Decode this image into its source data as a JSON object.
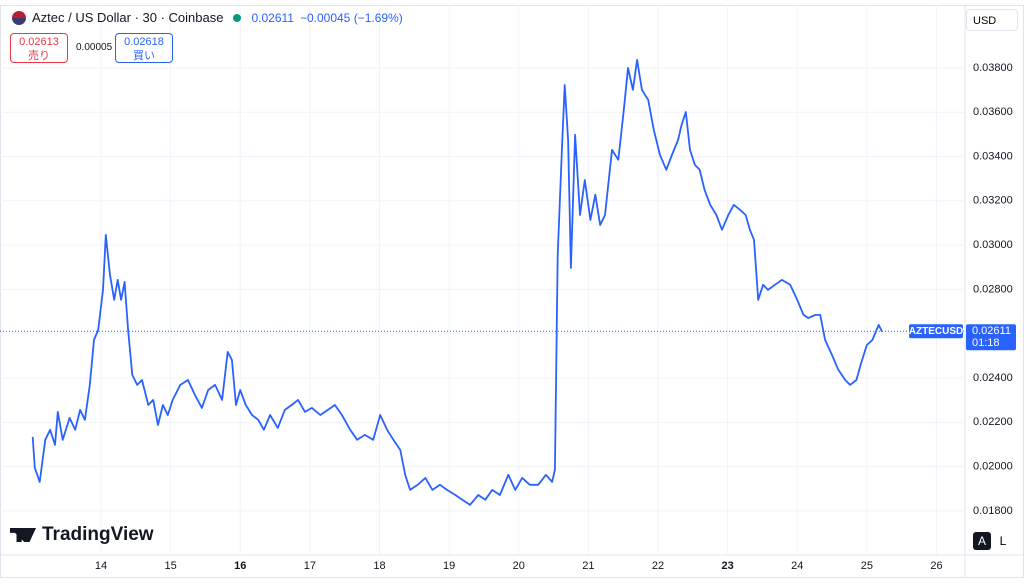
{
  "chart_data": {
    "type": "line",
    "title": "Aztec / US Dollar · 30 · Coinbase",
    "symbol": "AZTECUSD",
    "last_price": 0.02611,
    "change": "−0.00045 (−1.69%)",
    "countdown": "01:18",
    "currency": "USD",
    "sell_price": "0.02613",
    "sell_label": "売り",
    "spread": "0.00005",
    "buy_price": "0.02618",
    "buy_label": "買い",
    "brand": "TradingView",
    "scale_auto": "A",
    "scale_log": "L",
    "color": "#2962ff",
    "xlim": [
      12.55,
      26.41
    ],
    "xticks": [
      14,
      15,
      16,
      17,
      18,
      19,
      20,
      21,
      22,
      23,
      24,
      25,
      26
    ],
    "bold_xticks": [
      16,
      23
    ],
    "ylim": [
      0.01601,
      0.04084
    ],
    "yticks": [
      {
        "value": 0.018,
        "label": "0.01800"
      },
      {
        "value": 0.02,
        "label": "0.02000"
      },
      {
        "value": 0.022,
        "label": "0.02200"
      },
      {
        "value": 0.024,
        "label": "0.02400"
      },
      {
        "value": 0.026,
        "label": "0.02600"
      },
      {
        "value": 0.028,
        "label": "0.02800"
      },
      {
        "value": 0.03,
        "label": "0.03000"
      },
      {
        "value": 0.032,
        "label": "0.03200"
      },
      {
        "value": 0.034,
        "label": "0.03400"
      },
      {
        "value": 0.036,
        "label": "0.03600"
      },
      {
        "value": 0.038,
        "label": "0.03800"
      }
    ],
    "grid": true,
    "x": [
      13.02,
      13.05,
      13.12,
      13.2,
      13.27,
      13.34,
      13.38,
      13.45,
      13.55,
      13.63,
      13.7,
      13.77,
      13.84,
      13.9,
      13.96,
      14.03,
      14.07,
      14.13,
      14.19,
      14.24,
      14.29,
      14.34,
      14.39,
      14.45,
      14.52,
      14.59,
      14.68,
      14.75,
      14.82,
      14.89,
      14.96,
      15.03,
      15.14,
      15.25,
      15.35,
      15.45,
      15.54,
      15.64,
      15.74,
      15.82,
      15.88,
      15.94,
      16.0,
      16.08,
      16.17,
      16.26,
      16.34,
      16.43,
      16.54,
      16.64,
      16.74,
      16.83,
      16.93,
      17.03,
      17.15,
      17.26,
      17.36,
      17.46,
      17.58,
      17.68,
      17.79,
      17.91,
      18.01,
      18.11,
      18.2,
      18.3,
      18.37,
      18.44,
      18.55,
      18.66,
      18.76,
      18.87,
      18.97,
      19.09,
      19.19,
      19.3,
      19.42,
      19.52,
      19.62,
      19.73,
      19.85,
      19.95,
      20.05,
      20.16,
      20.28,
      20.39,
      20.48,
      20.52,
      20.56,
      20.62,
      20.66,
      20.71,
      20.75,
      20.81,
      20.88,
      20.95,
      21.03,
      21.1,
      21.17,
      21.24,
      21.34,
      21.43,
      21.51,
      21.57,
      21.64,
      21.7,
      21.77,
      21.86,
      21.94,
      22.03,
      22.12,
      22.2,
      22.29,
      22.34,
      22.4,
      22.46,
      22.53,
      22.6,
      22.67,
      22.75,
      22.84,
      22.92,
      23.01,
      23.09,
      23.18,
      23.26,
      23.32,
      23.38,
      23.44,
      23.51,
      23.58,
      23.68,
      23.78,
      23.9,
      24.0,
      24.09,
      24.16,
      24.26,
      24.33,
      24.4,
      24.5,
      24.59,
      24.69,
      24.76,
      24.85,
      24.91,
      25.0,
      25.08,
      25.17,
      25.22
    ],
    "values": [
      0.02134,
      0.01994,
      0.01931,
      0.02121,
      0.02166,
      0.02098,
      0.02247,
      0.02121,
      0.0222,
      0.02166,
      0.02256,
      0.02211,
      0.02369,
      0.02572,
      0.02617,
      0.02798,
      0.03046,
      0.02865,
      0.02753,
      0.02843,
      0.02753,
      0.02834,
      0.02617,
      0.02414,
      0.02369,
      0.02391,
      0.02278,
      0.02301,
      0.02188,
      0.02278,
      0.02233,
      0.02301,
      0.02369,
      0.02391,
      0.02324,
      0.02265,
      0.02346,
      0.02369,
      0.02301,
      0.02518,
      0.02482,
      0.02278,
      0.02346,
      0.02278,
      0.02233,
      0.02211,
      0.02166,
      0.02233,
      0.02175,
      0.02256,
      0.02278,
      0.02301,
      0.02247,
      0.02265,
      0.02233,
      0.02256,
      0.02278,
      0.02233,
      0.02166,
      0.02121,
      0.02143,
      0.02121,
      0.02233,
      0.02166,
      0.02121,
      0.02075,
      0.01963,
      0.01895,
      0.01918,
      0.01949,
      0.01895,
      0.01918,
      0.01895,
      0.01872,
      0.0185,
      0.01827,
      0.01872,
      0.0185,
      0.01895,
      0.01872,
      0.01963,
      0.01895,
      0.01949,
      0.01918,
      0.01918,
      0.01963,
      0.01931,
      0.01985,
      0.02956,
      0.0343,
      0.03723,
      0.03475,
      0.02897,
      0.03498,
      0.03136,
      0.03294,
      0.03114,
      0.03227,
      0.03091,
      0.03136,
      0.0343,
      0.03385,
      0.0361,
      0.038,
      0.03701,
      0.03836,
      0.03701,
      0.03656,
      0.0352,
      0.03407,
      0.0334,
      0.03407,
      0.03475,
      0.03543,
      0.03601,
      0.0343,
      0.03362,
      0.0334,
      0.03249,
      0.03182,
      0.03136,
      0.03069,
      0.03136,
      0.03182,
      0.03159,
      0.03136,
      0.03069,
      0.03024,
      0.02753,
      0.02821,
      0.02798,
      0.02821,
      0.02843,
      0.02821,
      0.02753,
      0.02685,
      0.02671,
      0.02685,
      0.02685,
      0.02572,
      0.02504,
      0.02437,
      0.02391,
      0.02369,
      0.02391,
      0.02459,
      0.02549,
      0.02572,
      0.0264,
      0.02608
    ]
  }
}
